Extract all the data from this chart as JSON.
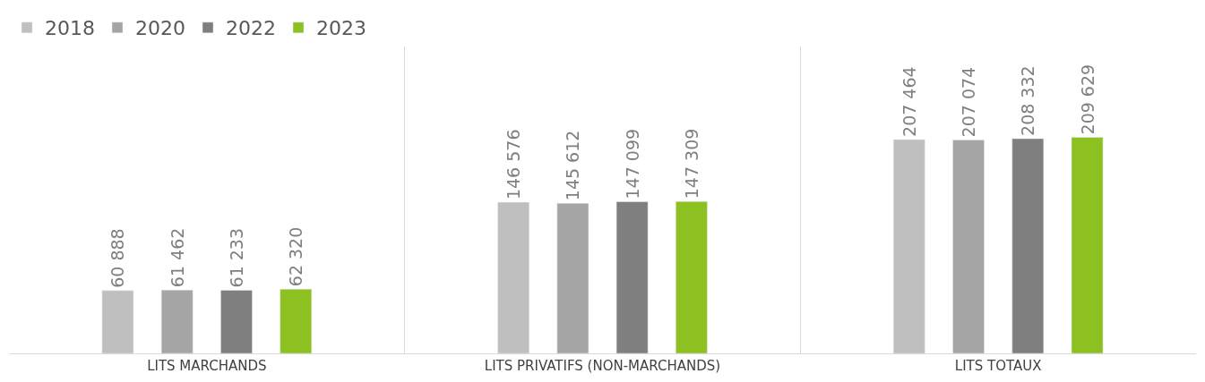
{
  "chart_data": {
    "type": "bar",
    "categories": [
      "LITS MARCHANDS",
      "LITS PRIVATIFS (NON-MARCHANDS)",
      "LITS TOTAUX"
    ],
    "series": [
      {
        "name": "2018",
        "color": "#bfbfbf",
        "values": [
          60888,
          146576,
          207464
        ]
      },
      {
        "name": "2020",
        "color": "#a5a5a5",
        "values": [
          61462,
          145612,
          207074
        ]
      },
      {
        "name": "2022",
        "color": "#7f7f7f",
        "values": [
          61233,
          147099,
          208332
        ]
      },
      {
        "name": "2023",
        "color": "#8dc021",
        "values": [
          62320,
          147309,
          209629
        ]
      }
    ],
    "data_labels": true,
    "grid": "x",
    "legend": "top left"
  }
}
